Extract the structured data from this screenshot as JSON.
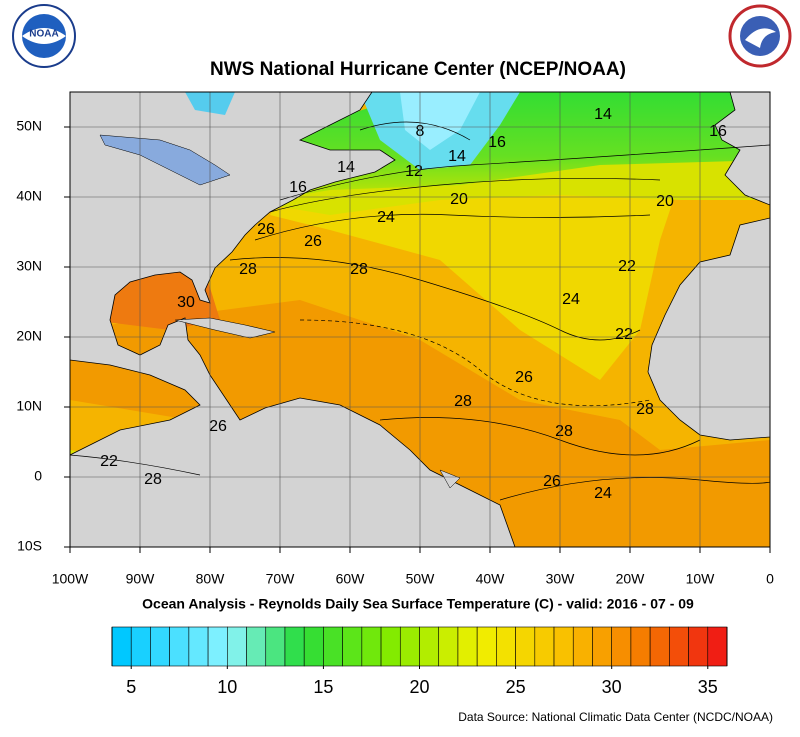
{
  "header": {
    "title": "NWS National Hurricane Center (NCEP/NOAA)"
  },
  "map": {
    "subtitle": "Ocean Analysis - Reynolds Daily Sea Surface Temperature (C) - valid: 2016 - 07 - 09",
    "xlim": [
      -100,
      0
    ],
    "ylim": [
      -10,
      55
    ],
    "xticks": [
      {
        "value": -100,
        "label": "100W"
      },
      {
        "value": -90,
        "label": "90W"
      },
      {
        "value": -80,
        "label": "80W"
      },
      {
        "value": -70,
        "label": "70W"
      },
      {
        "value": -60,
        "label": "60W"
      },
      {
        "value": -50,
        "label": "50W"
      },
      {
        "value": -40,
        "label": "40W"
      },
      {
        "value": -30,
        "label": "30W"
      },
      {
        "value": -20,
        "label": "20W"
      },
      {
        "value": -10,
        "label": "10W"
      },
      0
    ],
    "yticks": [
      {
        "value": 50,
        "label": "50N"
      },
      {
        "value": 40,
        "label": "40N"
      },
      {
        "value": 30,
        "label": "30N"
      },
      {
        "value": 20,
        "label": "20N"
      },
      {
        "value": 10,
        "label": "10N"
      },
      0,
      {
        "value": -10,
        "label": "10S"
      }
    ],
    "grid": true,
    "contour_labels": [
      8,
      14,
      16,
      16,
      14,
      12,
      14,
      16,
      20,
      24,
      20,
      26,
      26,
      28,
      28,
      22,
      30,
      24,
      22,
      26,
      28,
      28,
      28,
      26,
      24,
      22,
      28,
      26
    ]
  },
  "colorbar": {
    "range": [
      4,
      36
    ],
    "ticks": [
      5,
      10,
      15,
      20,
      25,
      30,
      35
    ]
  },
  "footer": {
    "source": "Data Source: National Climatic Data Center (NCDC/NOAA)"
  }
}
